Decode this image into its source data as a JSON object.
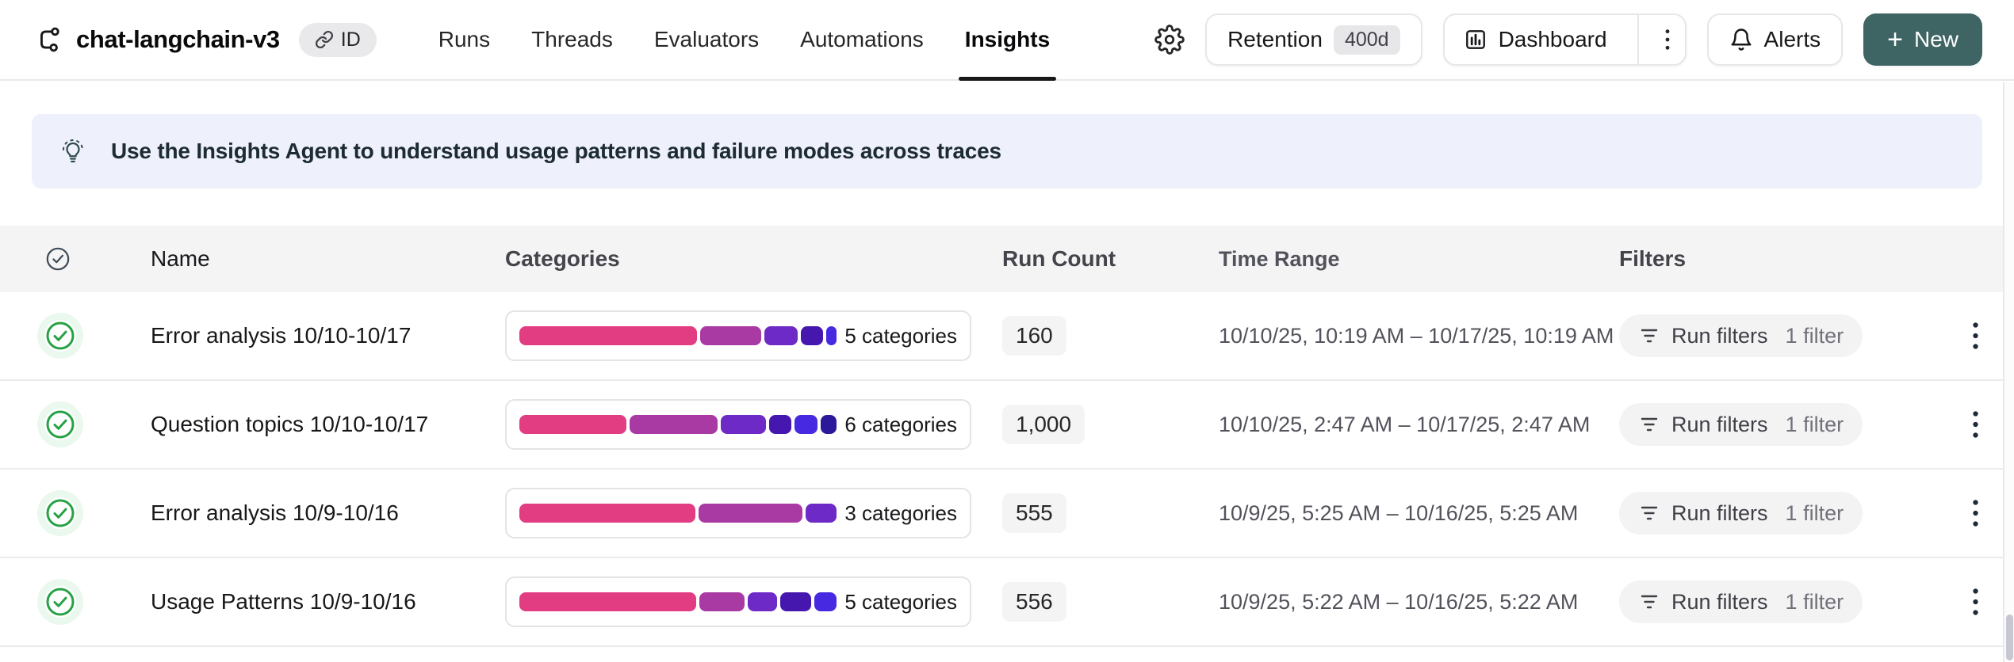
{
  "header": {
    "title": "chat-langchain-v3",
    "id_badge_label": "ID",
    "tabs": [
      {
        "label": "Runs"
      },
      {
        "label": "Threads"
      },
      {
        "label": "Evaluators"
      },
      {
        "label": "Automations"
      },
      {
        "label": "Insights"
      }
    ],
    "active_tab": "Insights",
    "retention_label": "Retention",
    "retention_value": "400d",
    "dashboard_label": "Dashboard",
    "alerts_label": "Alerts",
    "new_plus": "+",
    "new_label": "New"
  },
  "banner": {
    "text": "Use the Insights Agent to understand usage patterns and failure modes across traces"
  },
  "table": {
    "columns": [
      {
        "label": "Name"
      },
      {
        "label": "Categories"
      },
      {
        "label": "Run Count"
      },
      {
        "label": "Time Range"
      },
      {
        "label": "Filters"
      }
    ],
    "rows": [
      {
        "name": "Error analysis 10/10-10/17",
        "categories_label": "5 categories",
        "run_count": "160",
        "time_range": "10/10/25, 10:19 AM – 10/17/25, 10:19 AM",
        "filter_button": "Run filters",
        "filter_count": "1 filter",
        "segments": [
          {
            "color": "#e23d82",
            "pct": 56.5
          },
          {
            "color": "#a93aa3",
            "pct": 19.5
          },
          {
            "color": "#6d2ac6",
            "pct": 10.6
          },
          {
            "color": "#4617ae",
            "pct": 7.1
          },
          {
            "color": "#4629e0",
            "pct": 3.2
          }
        ]
      },
      {
        "name": "Question topics 10/10-10/17",
        "categories_label": "6 categories",
        "run_count": "1,000",
        "time_range": "10/10/25, 2:47 AM – 10/17/25, 2:47 AM",
        "filter_button": "Run filters",
        "filter_count": "1 filter",
        "segments": [
          {
            "color": "#e23d82",
            "pct": 34.0
          },
          {
            "color": "#a93aa3",
            "pct": 27.8
          },
          {
            "color": "#6d2ac6",
            "pct": 14.2
          },
          {
            "color": "#4617ae",
            "pct": 7.2
          },
          {
            "color": "#4629e0",
            "pct": 7.2
          },
          {
            "color": "#2b189b",
            "pct": 5.0
          }
        ]
      },
      {
        "name": "Error analysis 10/9-10/16",
        "categories_label": "3 categories",
        "run_count": "555",
        "time_range": "10/9/25, 5:25 AM – 10/16/25, 5:25 AM",
        "filter_button": "Run filters",
        "filter_count": "1 filter",
        "segments": [
          {
            "color": "#e23d82",
            "pct": 54.7
          },
          {
            "color": "#a93aa3",
            "pct": 32.5
          },
          {
            "color": "#6d2ac6",
            "pct": 9.5
          }
        ]
      },
      {
        "name": "Usage Patterns 10/9-10/16",
        "categories_label": "5 categories",
        "run_count": "556",
        "time_range": "10/9/25, 5:22 AM – 10/16/25, 5:22 AM",
        "filter_button": "Run filters",
        "filter_count": "1 filter",
        "segments": [
          {
            "color": "#e23d82",
            "pct": 55.0
          },
          {
            "color": "#a93aa3",
            "pct": 14.0
          },
          {
            "color": "#6d2ac6",
            "pct": 9.0
          },
          {
            "color": "#4617ae",
            "pct": 9.5
          },
          {
            "color": "#4629e0",
            "pct": 7.0
          }
        ]
      }
    ]
  },
  "colors": {
    "new_button_bg": "#3f6464",
    "banner_bg": "#eef0fb",
    "table_header_bg": "#f4f4f5",
    "status_green": "#25a244",
    "active_tab_underline": "#18181b"
  },
  "icons": {
    "logo": "trace-tree-icon",
    "id_badge": "link-icon",
    "settings": "gear-icon",
    "dashboard": "bar-chart-icon",
    "dashboard_more": "kebab-vertical-icon",
    "alerts": "bell-icon",
    "new": "plus-icon",
    "banner": "lightbulb-icon",
    "select_header": "circle-check-icon",
    "row_status": "circle-check-green-icon",
    "filter": "filter-lines-icon",
    "row_actions": "kebab-vertical-icon"
  }
}
